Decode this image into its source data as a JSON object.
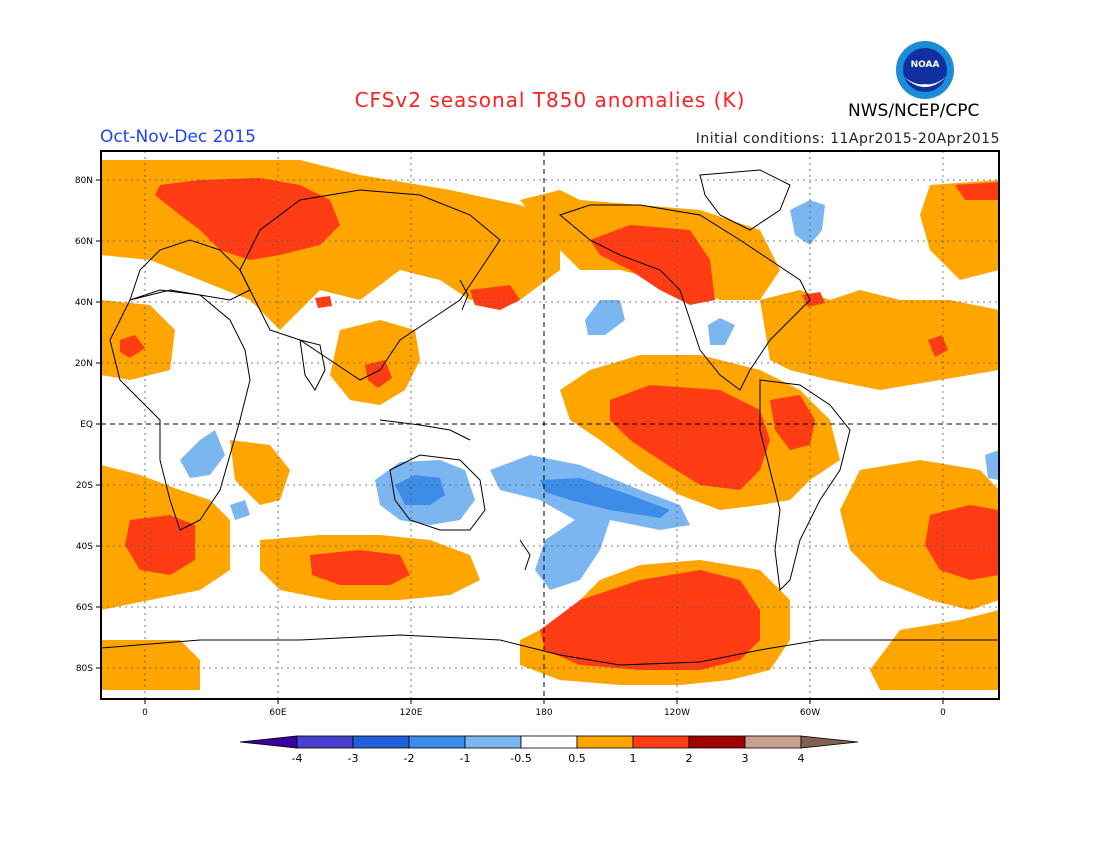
{
  "header": {
    "title": "CFSv2 seasonal T850 anomalies (K)",
    "period": "Oct-Nov-Dec 2015",
    "init_conditions": "Initial conditions: 11Apr2015-20Apr2015",
    "agency": "NWS/NCEP/CPC",
    "logo_text": "NOAA"
  },
  "map": {
    "lat_ticks": [
      "80N",
      "60N",
      "40N",
      "20N",
      "EQ",
      "20S",
      "40S",
      "60S",
      "80S"
    ],
    "lon_ticks": [
      "0",
      "60E",
      "120E",
      "180",
      "120W",
      "60W",
      "0"
    ],
    "grid": true,
    "projection": "equirectangular"
  },
  "colorbar": {
    "labels": [
      "-4",
      "-3",
      "-2",
      "-1",
      "-0.5",
      "0.5",
      "1",
      "2",
      "3",
      "4"
    ],
    "colors": [
      "#3a00a0",
      "#4a40d0",
      "#2060d8",
      "#3c8ce8",
      "#7cb6f0",
      "#ffffff",
      "#ffa500",
      "#ff3c14",
      "#a00000",
      "#c8a090",
      "#806050"
    ]
  },
  "colors": {
    "title": "#ff2020",
    "period": "#2040ff",
    "orange": "#ffa500",
    "red": "#ff3c14",
    "light_blue": "#7cb6f0",
    "blue": "#3c8ce8"
  }
}
